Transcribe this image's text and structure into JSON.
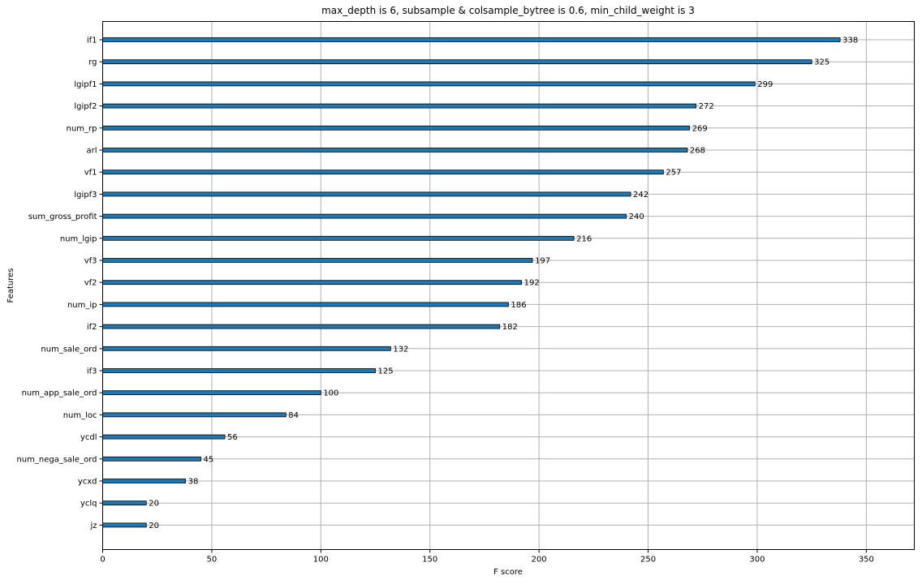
{
  "chart_data": {
    "type": "bar",
    "orientation": "horizontal",
    "title": "max_depth is 6, subsample & colsample_bytree is 0.6, min_child_weight is 3",
    "xlabel": "F score",
    "ylabel": "Features",
    "xlim": [
      0,
      372
    ],
    "x_ticks": [
      0,
      50,
      100,
      150,
      200,
      250,
      300,
      350
    ],
    "grid": true,
    "categories": [
      "if1",
      "rg",
      "lgipf1",
      "lgipf2",
      "num_rp",
      "arl",
      "vf1",
      "lgipf3",
      "sum_gross_profit",
      "num_lgip",
      "vf3",
      "vf2",
      "num_ip",
      "if2",
      "num_sale_ord",
      "if3",
      "num_app_sale_ord",
      "num_loc",
      "ycdl",
      "num_nega_sale_ord",
      "ycxd",
      "yclq",
      "jz"
    ],
    "values": [
      338,
      325,
      299,
      272,
      269,
      268,
      257,
      242,
      240,
      216,
      197,
      192,
      186,
      182,
      132,
      125,
      100,
      84,
      56,
      45,
      38,
      20,
      20
    ],
    "bar_color": "#1f77b4",
    "bar_edge_color": "#000000",
    "grid_color": "#b0b0b0"
  }
}
